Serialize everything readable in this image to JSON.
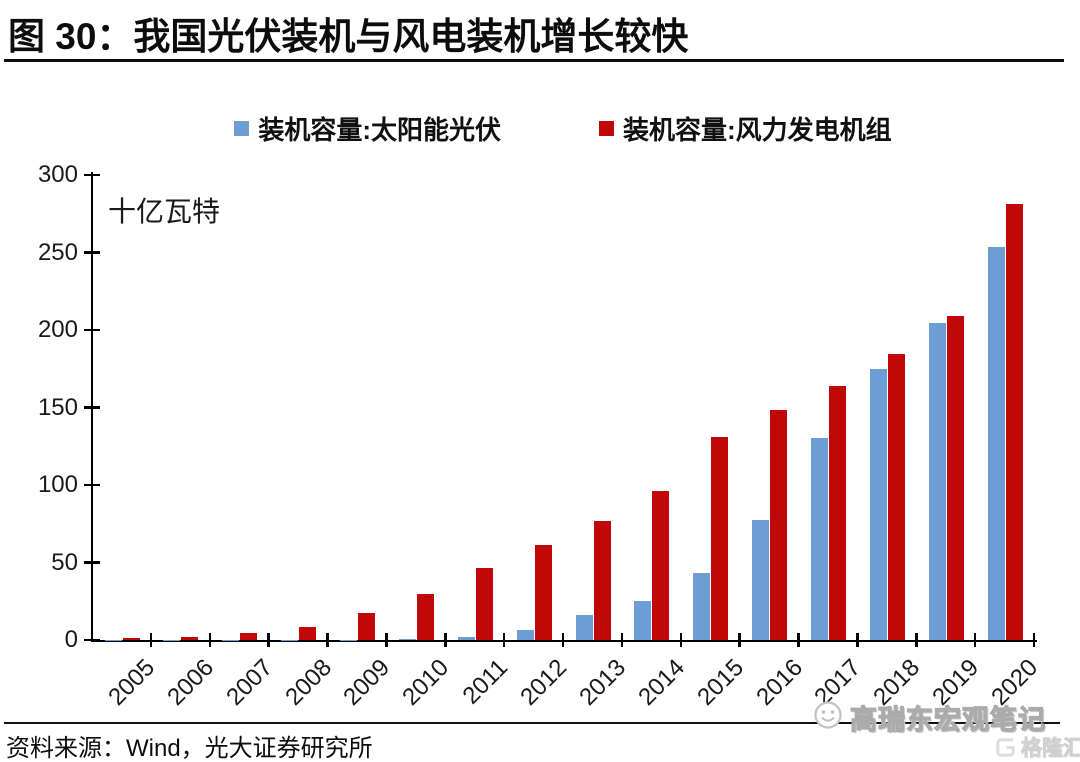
{
  "figure": {
    "title": "图 30：我国光伏装机与风电装机增长较快",
    "source": "资料来源：Wind，光大证券研究所"
  },
  "watermark": {
    "text": "高瑞东宏观笔记",
    "logo_text": "格隆汇",
    "smiley_icon": "smiley-face",
    "color": "#ffffff",
    "outline_color": "#ababab"
  },
  "chart_data": {
    "type": "bar",
    "title": "",
    "unit_label": "十亿瓦特",
    "xlabel": "",
    "ylabel": "",
    "ylim": [
      0,
      300
    ],
    "yticks": [
      0,
      50,
      100,
      150,
      200,
      250,
      300
    ],
    "grid": false,
    "legend_position": "top",
    "categories": [
      "2005",
      "2006",
      "2007",
      "2008",
      "2009",
      "2010",
      "2011",
      "2012",
      "2013",
      "2014",
      "2015",
      "2016",
      "2017",
      "2018",
      "2019",
      "2020"
    ],
    "series": [
      {
        "name": "装机容量:太阳能光伏",
        "color": "#6c9dd4",
        "values": [
          0.1,
          0.1,
          0.1,
          0.2,
          0.3,
          0.9,
          2.1,
          6.5,
          15.9,
          24.9,
          43.2,
          77.4,
          130.2,
          174.6,
          204.7,
          253.4
        ]
      },
      {
        "name": "装机容量:风力发电机组",
        "color": "#c00808",
        "values": [
          1.1,
          2.1,
          4.2,
          8.4,
          17.6,
          29.6,
          46.2,
          61.4,
          76.5,
          96.4,
          130.8,
          148.6,
          163.7,
          184.3,
          209.2,
          281.5
        ]
      }
    ],
    "axis_color": "#000000",
    "text_color": "#1a1a1a"
  }
}
